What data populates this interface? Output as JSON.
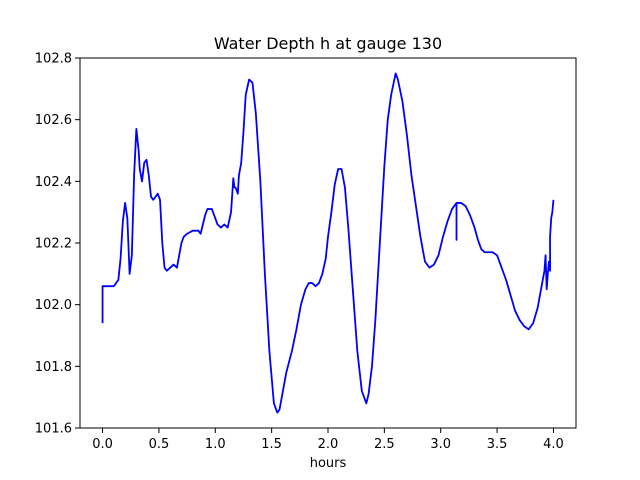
{
  "chart_data": {
    "type": "line",
    "title": "Water Depth h at gauge 130",
    "xlabel": "hours",
    "ylabel": "",
    "xlim": [
      -0.2,
      4.2
    ],
    "ylim": [
      101.6,
      102.8
    ],
    "xticks": [
      0.0,
      0.5,
      1.0,
      1.5,
      2.0,
      2.5,
      3.0,
      3.5,
      4.0
    ],
    "xtick_labels": [
      "0.0",
      "0.5",
      "1.0",
      "1.5",
      "2.0",
      "2.5",
      "3.0",
      "3.5",
      "4.0"
    ],
    "yticks": [
      101.6,
      101.8,
      102.0,
      102.2,
      102.4,
      102.6,
      102.8
    ],
    "ytick_labels": [
      "101.6",
      "101.8",
      "102.0",
      "102.2",
      "102.4",
      "102.6",
      "102.8"
    ],
    "grid": false,
    "series": [
      {
        "color": "#0000ff",
        "x": [
          0.0,
          0.0,
          0.01,
          0.05,
          0.1,
          0.14,
          0.16,
          0.18,
          0.2,
          0.22,
          0.24,
          0.26,
          0.28,
          0.3,
          0.32,
          0.33,
          0.35,
          0.37,
          0.39,
          0.41,
          0.43,
          0.45,
          0.47,
          0.49,
          0.51,
          0.53,
          0.55,
          0.57,
          0.6,
          0.63,
          0.66,
          0.7,
          0.72,
          0.75,
          0.8,
          0.85,
          0.87,
          0.89,
          0.91,
          0.93,
          0.97,
          1.0,
          1.02,
          1.05,
          1.08,
          1.11,
          1.14,
          1.16,
          1.17,
          1.18,
          1.2,
          1.21,
          1.23,
          1.25,
          1.27,
          1.3,
          1.33,
          1.36,
          1.4,
          1.44,
          1.48,
          1.52,
          1.55,
          1.57,
          1.6,
          1.63,
          1.68,
          1.72,
          1.76,
          1.8,
          1.83,
          1.86,
          1.89,
          1.92,
          1.95,
          1.98,
          2.0,
          2.03,
          2.06,
          2.09,
          2.12,
          2.15,
          2.18,
          2.22,
          2.26,
          2.3,
          2.34,
          2.36,
          2.39,
          2.42,
          2.46,
          2.5,
          2.53,
          2.56,
          2.6,
          2.62,
          2.66,
          2.7,
          2.74,
          2.78,
          2.82,
          2.86,
          2.9,
          2.94,
          2.98,
          3.02,
          3.06,
          3.1,
          3.14,
          3.14,
          3.14,
          3.15,
          3.18,
          3.22,
          3.26,
          3.3,
          3.33,
          3.36,
          3.39,
          3.42,
          3.46,
          3.5,
          3.54,
          3.58,
          3.62,
          3.66,
          3.7,
          3.74,
          3.78,
          3.82,
          3.86,
          3.9,
          3.92,
          3.93,
          3.94,
          3.95,
          3.96,
          3.97,
          3.97,
          3.98,
          3.99,
          4.0
        ],
        "y": [
          101.94,
          102.06,
          102.06,
          102.06,
          102.06,
          102.08,
          102.15,
          102.27,
          102.33,
          102.28,
          102.1,
          102.16,
          102.42,
          102.57,
          102.5,
          102.44,
          102.4,
          102.46,
          102.47,
          102.42,
          102.35,
          102.34,
          102.35,
          102.36,
          102.34,
          102.2,
          102.12,
          102.11,
          102.12,
          102.13,
          102.12,
          102.2,
          102.22,
          102.23,
          102.24,
          102.24,
          102.23,
          102.26,
          102.29,
          102.31,
          102.31,
          102.28,
          102.26,
          102.25,
          102.26,
          102.25,
          102.3,
          102.41,
          102.38,
          102.38,
          102.36,
          102.42,
          102.46,
          102.56,
          102.68,
          102.73,
          102.72,
          102.62,
          102.4,
          102.1,
          101.85,
          101.68,
          101.65,
          101.66,
          101.72,
          101.78,
          101.85,
          101.92,
          102.0,
          102.05,
          102.07,
          102.07,
          102.06,
          102.07,
          102.1,
          102.15,
          102.22,
          102.3,
          102.39,
          102.44,
          102.44,
          102.38,
          102.25,
          102.05,
          101.85,
          101.72,
          101.68,
          101.71,
          101.8,
          101.95,
          102.2,
          102.45,
          102.6,
          102.68,
          102.75,
          102.73,
          102.66,
          102.55,
          102.42,
          102.32,
          102.22,
          102.14,
          102.12,
          102.13,
          102.16,
          102.22,
          102.27,
          102.31,
          102.33,
          102.21,
          102.33,
          102.33,
          102.33,
          102.32,
          102.29,
          102.25,
          102.21,
          102.18,
          102.17,
          102.17,
          102.17,
          102.16,
          102.12,
          102.08,
          102.03,
          101.98,
          101.95,
          101.93,
          101.92,
          101.94,
          101.99,
          102.07,
          102.11,
          102.16,
          102.05,
          102.1,
          102.14,
          102.11,
          102.22,
          102.28,
          102.3,
          102.34
        ]
      }
    ]
  }
}
